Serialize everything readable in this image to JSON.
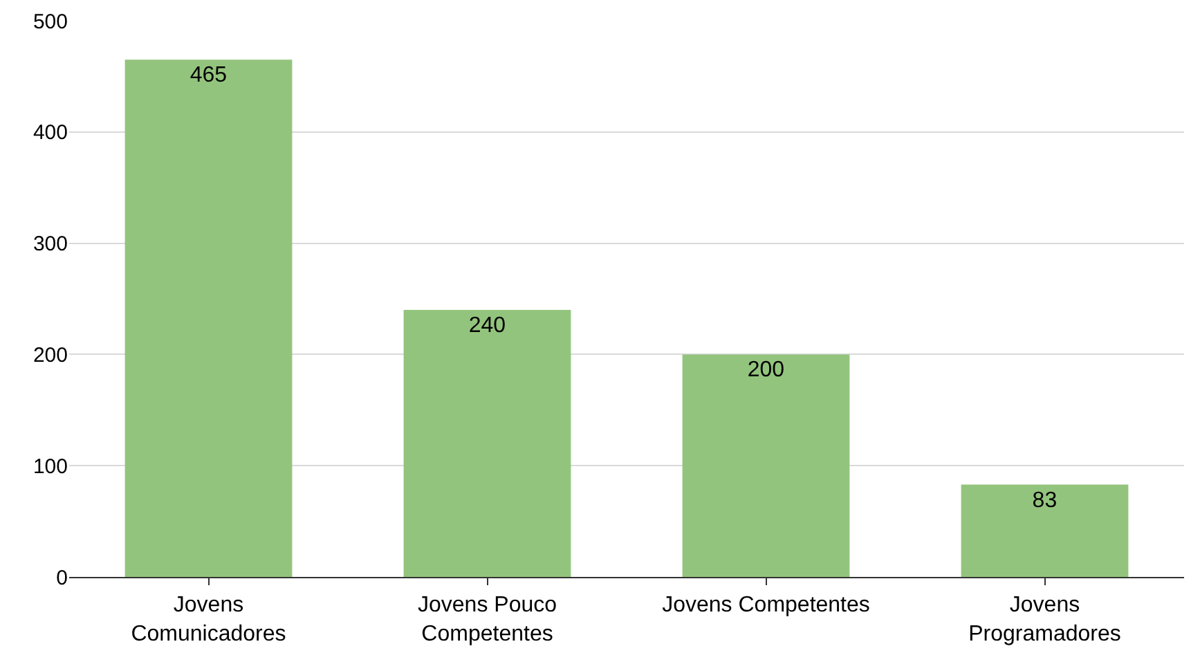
{
  "chart_data": {
    "type": "bar",
    "categories": [
      "Jovens Comunicadores",
      "Jovens Pouco Competentes",
      "Jovens Competentes",
      "Jovens Programadores"
    ],
    "values": [
      465,
      240,
      200,
      83
    ],
    "color": "#93c47d",
    "ylim": [
      0,
      500
    ],
    "yticks": [
      0,
      100,
      200,
      300,
      400,
      500
    ],
    "grid": "y",
    "data_labels": true
  }
}
